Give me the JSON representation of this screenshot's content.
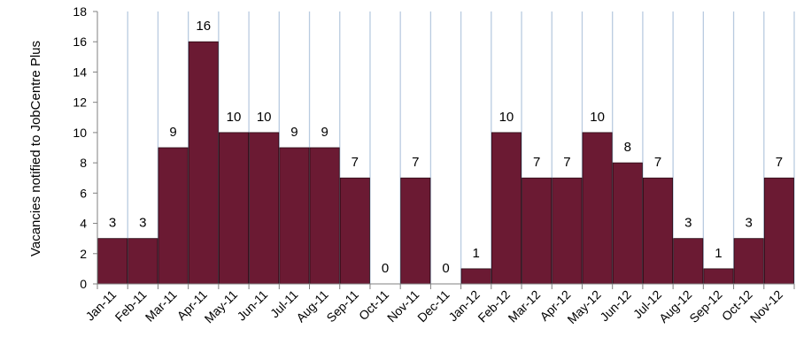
{
  "chart_data": {
    "type": "bar",
    "title": "",
    "xlabel": "",
    "ylabel": "Vacancies notified to JobCentre Plus",
    "ylim": [
      0,
      18
    ],
    "yticks": [
      0,
      2,
      4,
      6,
      8,
      10,
      12,
      14,
      16,
      18
    ],
    "grid": "vertical category gridlines",
    "categories": [
      "Jan-11",
      "Feb-11",
      "Mar-11",
      "Apr-11",
      "May-11",
      "Jun-11",
      "Jul-11",
      "Aug-11",
      "Sep-11",
      "Oct-11",
      "Nov-11",
      "Dec-11",
      "Jan-12",
      "Feb-12",
      "Mar-12",
      "Apr-12",
      "May-12",
      "Jun-12",
      "Jul-12",
      "Aug-12",
      "Sep-12",
      "Oct-12",
      "Nov-12"
    ],
    "values": [
      3,
      3,
      9,
      16,
      10,
      10,
      9,
      9,
      7,
      0,
      7,
      0,
      1,
      10,
      7,
      7,
      10,
      8,
      7,
      3,
      1,
      3,
      7
    ],
    "data_labels": [
      "3",
      "3",
      "9",
      "16",
      "10",
      "10",
      "9",
      "9",
      "7",
      "0",
      "7",
      "0",
      "1",
      "10",
      "7",
      "7",
      "10",
      "8",
      "7",
      "3",
      "1",
      "3",
      "7"
    ],
    "colors": {
      "bar": "#6b1a33",
      "bar_stroke": "#2a0a14",
      "grid": "#b9cbe0",
      "axis": "#808080"
    }
  }
}
